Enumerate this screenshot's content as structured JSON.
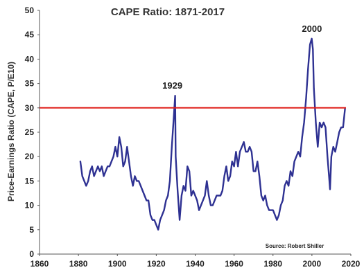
{
  "chart_data": {
    "type": "line",
    "title": "CAPE Ratio: 1871-2017",
    "xlabel": "",
    "ylabel": "Price-Earnings Ratio (CAPE, P/E10)",
    "xlim": [
      1860,
      2020
    ],
    "ylim": [
      0,
      50
    ],
    "x_ticks": [
      "1860",
      "1880",
      "1900",
      "1920",
      "1940",
      "1960",
      "1980",
      "2000",
      "2020"
    ],
    "y_ticks": [
      "0",
      "5",
      "10",
      "15",
      "20",
      "25",
      "30",
      "35",
      "40",
      "45",
      "50"
    ],
    "grid": false,
    "series": [
      {
        "color": "#2e3192",
        "x": [
          1881,
          1882,
          1883,
          1884,
          1885,
          1886,
          1887,
          1888,
          1889,
          1890,
          1891,
          1892,
          1893,
          1894,
          1895,
          1896,
          1897,
          1898,
          1899,
          1900,
          1901,
          1902,
          1903,
          1904,
          1905,
          1906,
          1907,
          1908,
          1909,
          1910,
          1911,
          1912,
          1913,
          1914,
          1915,
          1916,
          1917,
          1918,
          1919,
          1920,
          1921,
          1922,
          1923,
          1924,
          1925,
          1926,
          1927,
          1928,
          1929,
          1929.7,
          1930,
          1931,
          1932,
          1933,
          1934,
          1935,
          1936,
          1937,
          1938,
          1939,
          1940,
          1941,
          1942,
          1943,
          1944,
          1945,
          1946,
          1947,
          1948,
          1949,
          1950,
          1951,
          1952,
          1953,
          1954,
          1955,
          1956,
          1957,
          1958,
          1959,
          1960,
          1961,
          1962,
          1963,
          1964,
          1965,
          1966,
          1967,
          1968,
          1969,
          1970,
          1971,
          1972,
          1973,
          1974,
          1975,
          1976,
          1977,
          1978,
          1979,
          1980,
          1981,
          1982,
          1983,
          1984,
          1985,
          1986,
          1987,
          1988,
          1989,
          1990,
          1991,
          1992,
          1993,
          1994,
          1995,
          1996,
          1997,
          1998,
          1999,
          1999.9,
          2000.5,
          2001,
          2002,
          2003,
          2004,
          2005,
          2006,
          2007,
          2008,
          2009,
          2009.3,
          2010,
          2011,
          2012,
          2013,
          2014,
          2015,
          2016,
          2017
        ],
        "values": [
          19,
          16,
          15,
          14,
          15,
          17,
          18,
          16,
          17,
          18,
          17,
          18,
          16,
          17,
          18,
          18,
          19,
          20,
          22,
          20,
          24,
          22,
          18,
          19,
          22,
          19,
          16,
          14,
          16,
          15,
          15,
          14,
          13,
          12,
          11,
          11,
          8,
          7,
          7,
          6,
          5,
          7,
          8,
          9,
          11,
          12,
          15,
          22,
          28,
          32.5,
          20,
          13,
          7,
          12,
          14,
          13,
          18,
          17,
          12,
          13,
          12,
          11,
          9,
          10,
          11,
          12,
          15,
          12,
          10,
          10,
          11,
          12,
          12,
          12,
          13,
          16,
          18,
          15,
          16,
          19,
          18,
          21,
          18,
          21,
          22,
          23,
          21,
          21,
          22,
          21,
          17,
          17,
          19,
          16,
          12,
          11,
          12,
          10,
          9,
          9,
          9,
          8,
          7,
          8,
          10,
          11,
          14,
          15,
          14,
          17,
          16,
          19,
          20,
          21,
          20,
          24,
          27,
          32,
          38,
          43,
          44.2,
          42,
          34,
          27,
          22,
          27,
          26,
          27,
          26,
          20,
          15,
          13.3,
          20,
          22,
          21,
          23,
          25,
          26,
          26,
          29.8
        ]
      }
    ],
    "reference_line": {
      "y": 30,
      "color": "#e0201b"
    },
    "annotations": [
      {
        "text": "1929",
        "x": 1929
      },
      {
        "text": "2000",
        "x": 2000
      }
    ],
    "source_note": "Source: Robert Shiller"
  }
}
